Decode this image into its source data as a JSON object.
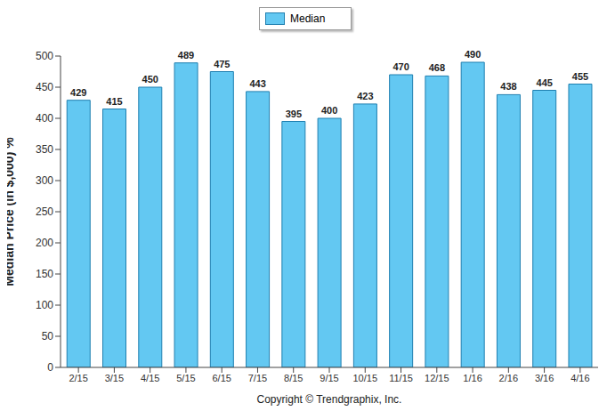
{
  "chart_data": {
    "type": "bar",
    "ylabel": "Median Price (in $,000) %",
    "annotation": "Copyright © Trendgraphix, Inc.",
    "categories": [
      "2/15",
      "3/15",
      "4/15",
      "5/15",
      "6/15",
      "7/15",
      "8/15",
      "9/15",
      "10/15",
      "11/15",
      "12/15",
      "1/16",
      "2/16",
      "3/16",
      "4/16"
    ],
    "series": [
      {
        "name": "Median",
        "color": "#63c8f2",
        "values": [
          429,
          415,
          450,
          489,
          475,
          443,
          395,
          400,
          423,
          470,
          468,
          490,
          438,
          445,
          455
        ]
      }
    ],
    "ylim": [
      0,
      500
    ],
    "yticks": [
      0,
      50,
      100,
      150,
      200,
      250,
      300,
      350,
      400,
      450,
      500
    ],
    "grid": false,
    "data_labels": true
  }
}
